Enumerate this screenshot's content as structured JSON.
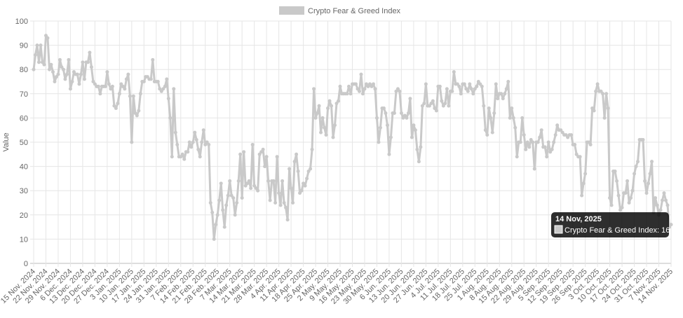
{
  "chart_data": {
    "type": "line",
    "legend": "top",
    "grid": true,
    "y_label": "Value",
    "ylim": [
      0,
      100
    ],
    "yticks": [
      0,
      10,
      20,
      30,
      40,
      50,
      60,
      70,
      80,
      90,
      100
    ],
    "categories": [
      "15 Nov. 2024",
      null,
      null,
      null,
      null,
      null,
      null,
      "22 Nov. 2024",
      null,
      null,
      null,
      null,
      null,
      null,
      "29 Nov. 2024",
      null,
      null,
      null,
      null,
      null,
      null,
      "6 Dec. 2024",
      null,
      null,
      null,
      null,
      null,
      null,
      "13 Dec. 2024",
      null,
      null,
      null,
      null,
      null,
      null,
      "20 Dec. 2024",
      null,
      null,
      null,
      null,
      null,
      null,
      "27 Dec. 2024",
      null,
      null,
      null,
      null,
      null,
      null,
      "3 Jan. 2025",
      null,
      null,
      null,
      null,
      null,
      null,
      "10 Jan. 2025",
      null,
      null,
      null,
      null,
      null,
      null,
      "17 Jan. 2025",
      null,
      null,
      null,
      null,
      null,
      null,
      "24 Jan. 2025",
      null,
      null,
      null,
      null,
      null,
      null,
      "31 Jan. 2025",
      null,
      null,
      null,
      null,
      null,
      null,
      "7 Feb. 2025",
      null,
      null,
      null,
      null,
      null,
      null,
      "14 Feb. 2025",
      null,
      null,
      null,
      null,
      null,
      null,
      "21 Feb. 2025",
      null,
      null,
      null,
      null,
      null,
      null,
      "28 Feb. 2025",
      null,
      null,
      null,
      null,
      null,
      null,
      "7 Mar. 2025",
      null,
      null,
      null,
      null,
      null,
      null,
      "14 Mar. 2025",
      null,
      null,
      null,
      null,
      null,
      null,
      "21 Mar. 2025",
      null,
      null,
      null,
      null,
      null,
      null,
      "28 Mar. 2025",
      null,
      null,
      null,
      null,
      null,
      null,
      "4 Apr. 2025",
      null,
      null,
      null,
      null,
      null,
      null,
      "11 Apr. 2025",
      null,
      null,
      null,
      null,
      null,
      null,
      "18 Apr. 2025",
      null,
      null,
      null,
      null,
      null,
      null,
      "25 Apr. 2025",
      null,
      null,
      null,
      null,
      null,
      null,
      "2 May. 2025",
      null,
      null,
      null,
      null,
      null,
      null,
      "9 May. 2025",
      null,
      null,
      null,
      null,
      null,
      null,
      "16 May. 2025",
      null,
      null,
      null,
      null,
      null,
      null,
      "23 May. 2025",
      null,
      null,
      null,
      null,
      null,
      null,
      "30 May. 2025",
      null,
      null,
      null,
      null,
      null,
      null,
      "6 Jun. 2025",
      null,
      null,
      null,
      null,
      null,
      null,
      "13 Jun. 2025",
      null,
      null,
      null,
      null,
      null,
      null,
      "20 Jun. 2025",
      null,
      null,
      null,
      null,
      null,
      null,
      "27 Jun. 2025",
      null,
      null,
      null,
      null,
      null,
      null,
      "4 Jul. 2025",
      null,
      null,
      null,
      null,
      null,
      null,
      "11 Jul. 2025",
      null,
      null,
      null,
      null,
      null,
      null,
      "18 Jul. 2025",
      null,
      null,
      null,
      null,
      null,
      null,
      "25 Jul. 2025",
      null,
      null,
      null,
      null,
      null,
      null,
      "1 Aug. 2025",
      null,
      null,
      null,
      null,
      null,
      null,
      "8 Aug. 2025",
      null,
      null,
      null,
      null,
      null,
      null,
      "15 Aug. 2025",
      null,
      null,
      null,
      null,
      null,
      null,
      "22 Aug. 2025",
      null,
      null,
      null,
      null,
      null,
      null,
      "29 Aug. 2025",
      null,
      null,
      null,
      null,
      null,
      null,
      "5 Sep. 2025",
      null,
      null,
      null,
      null,
      null,
      null,
      "12 Sep. 2025",
      null,
      null,
      null,
      null,
      null,
      null,
      "19 Sep. 2025",
      null,
      null,
      null,
      null,
      null,
      null,
      "26 Sep. 2025",
      null,
      null,
      null,
      null,
      null,
      null,
      "3 Oct. 2025",
      null,
      null,
      null,
      null,
      null,
      null,
      "10 Oct. 2025",
      null,
      null,
      null,
      null,
      null,
      null,
      "17 Oct. 2025",
      null,
      null,
      null,
      null,
      null,
      null,
      "24 Oct. 2025",
      null,
      null,
      null,
      null,
      null,
      null,
      "31 Oct. 2025",
      null,
      null,
      null,
      null,
      null,
      null,
      "7 Nov. 2025",
      null,
      null,
      null,
      null,
      null,
      null,
      "14 Nov. 2025"
    ],
    "series": [
      {
        "name": "Crypto Fear & Greed Index",
        "color": "#c9c9c9",
        "values": [
          80,
          86,
          90,
          83,
          90,
          83,
          82,
          94,
          93,
          80,
          82,
          79,
          75,
          77,
          78,
          84,
          81,
          80,
          76,
          78,
          84,
          72,
          75,
          79,
          78,
          78,
          74,
          78,
          83,
          76,
          83,
          83,
          87,
          81,
          75,
          74,
          73,
          73,
          70,
          73,
          73,
          73,
          79,
          74,
          72,
          73,
          65,
          64,
          66,
          70,
          74,
          73,
          72,
          76,
          78,
          69,
          50,
          69,
          62,
          61,
          63,
          70,
          75,
          75,
          77,
          77,
          76,
          76,
          84,
          75,
          75,
          75,
          72,
          71,
          72,
          73,
          76,
          68,
          60,
          44,
          72,
          54,
          49,
          44,
          44,
          45,
          43,
          46,
          46,
          50,
          48,
          50,
          54,
          51,
          47,
          44,
          50,
          55,
          49,
          50,
          49,
          25,
          21,
          10,
          16,
          20,
          26,
          33,
          22,
          15,
          24,
          28,
          34,
          28,
          27,
          20,
          25,
          34,
          45,
          27,
          46,
          32,
          33,
          34,
          31,
          49,
          32,
          31,
          30,
          45,
          46,
          47,
          40,
          44,
          34,
          26,
          34,
          34,
          25,
          44,
          29,
          24,
          34,
          25,
          23,
          18,
          39,
          31,
          25,
          42,
          45,
          38,
          29,
          30,
          33,
          32,
          35,
          38,
          39,
          47,
          72,
          60,
          62,
          65,
          54,
          60,
          56,
          53,
          64,
          67,
          65,
          52,
          57,
          66,
          67,
          73,
          70,
          70,
          70,
          70,
          73,
          70,
          74,
          74,
          74,
          72,
          71,
          78,
          70,
          72,
          74,
          73,
          74,
          73,
          74,
          72,
          60,
          50,
          56,
          64,
          64,
          62,
          57,
          45,
          52,
          62,
          62,
          71,
          72,
          71,
          62,
          60,
          61,
          60,
          62,
          68,
          52,
          57,
          55,
          47,
          42,
          48,
          65,
          66,
          74,
          65,
          65,
          66,
          67,
          64,
          63,
          73,
          73,
          67,
          65,
          66,
          72,
          65,
          71,
          71,
          79,
          74,
          74,
          73,
          70,
          74,
          74,
          72,
          71,
          74,
          72,
          70,
          72,
          73,
          75,
          74,
          73,
          65,
          55,
          53,
          64,
          60,
          54,
          62,
          74,
          68,
          70,
          70,
          68,
          70,
          72,
          75,
          60,
          64,
          60,
          56,
          44,
          50,
          50,
          60,
          53,
          47,
          50,
          48,
          51,
          50,
          39,
          50,
          50,
          52,
          55,
          48,
          48,
          44,
          50,
          46,
          47,
          50,
          53,
          57,
          55,
          55,
          54,
          53,
          53,
          52,
          53,
          53,
          49,
          49,
          45,
          44,
          44,
          28,
          33,
          37,
          50,
          50,
          49,
          64,
          63,
          71,
          74,
          71,
          71,
          70,
          60,
          70,
          64,
          27,
          24,
          38,
          38,
          34,
          28,
          22,
          23,
          29,
          29,
          34,
          25,
          27,
          30,
          37,
          40,
          42,
          51,
          51,
          51,
          34,
          29,
          33,
          37,
          42,
          21,
          27,
          24,
          20,
          22,
          26,
          29,
          26,
          24,
          15,
          16
        ]
      }
    ],
    "tooltip": {
      "title": "14 Nov, 2025",
      "text": "Crypto Fear & Greed Index: 16"
    }
  }
}
